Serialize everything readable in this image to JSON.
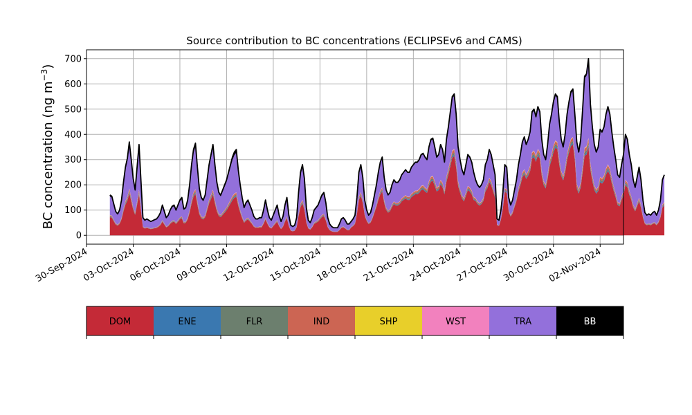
{
  "chart_data": {
    "type": "area",
    "title": "Source contribution to BC concentrations (ECLIPSEv6 and CAMS)",
    "ylabel_main": "BC concentration (ng m",
    "ylabel_exp": "−3",
    "ylabel_close": ")",
    "xlabel": "",
    "ylim": [
      -35,
      735
    ],
    "yticks": [
      0,
      100,
      200,
      300,
      400,
      500,
      600,
      700
    ],
    "xlim": [
      "2024-09-30T00:00",
      "2024-11-03T12:00"
    ],
    "xticks": [
      "2024-09-30",
      "2024-10-03",
      "2024-10-06",
      "2024-10-09",
      "2024-10-12",
      "2024-10-15",
      "2024-10-18",
      "2024-10-21",
      "2024-10-24",
      "2024-10-27",
      "2024-10-30",
      "2024-11-02"
    ],
    "xtick_labels": [
      "30-Sep-2024",
      "03-Oct-2024",
      "06-Oct-2024",
      "09-Oct-2024",
      "12-Oct-2024",
      "15-Oct-2024",
      "18-Oct-2024",
      "21-Oct-2024",
      "24-Oct-2024",
      "27-Oct-2024",
      "30-Oct-2024",
      "02-Nov-2024"
    ],
    "grid": true,
    "time_start": "2024-10-01T12:00",
    "time_step_hours": 3,
    "total": [
      160,
      155,
      125,
      95,
      85,
      100,
      140,
      210,
      270,
      305,
      370,
      300,
      225,
      180,
      270,
      360,
      215,
      70,
      60,
      65,
      60,
      55,
      58,
      62,
      65,
      75,
      90,
      120,
      95,
      70,
      80,
      100,
      115,
      120,
      100,
      120,
      140,
      150,
      105,
      110,
      140,
      200,
      280,
      340,
      365,
      270,
      185,
      150,
      140,
      160,
      220,
      280,
      320,
      360,
      280,
      210,
      170,
      160,
      180,
      200,
      220,
      250,
      280,
      310,
      330,
      340,
      260,
      200,
      150,
      110,
      130,
      140,
      120,
      100,
      75,
      65,
      65,
      70,
      70,
      100,
      140,
      100,
      70,
      60,
      80,
      100,
      120,
      80,
      55,
      75,
      120,
      150,
      80,
      40,
      35,
      40,
      70,
      170,
      250,
      280,
      225,
      110,
      60,
      50,
      70,
      100,
      110,
      120,
      140,
      160,
      170,
      130,
      70,
      45,
      35,
      30,
      30,
      30,
      45,
      65,
      70,
      60,
      45,
      45,
      55,
      65,
      80,
      150,
      250,
      280,
      230,
      140,
      100,
      80,
      90,
      120,
      160,
      200,
      250,
      290,
      310,
      230,
      180,
      160,
      170,
      200,
      220,
      210,
      210,
      220,
      240,
      250,
      260,
      250,
      250,
      270,
      280,
      290,
      290,
      300,
      320,
      325,
      310,
      300,
      350,
      380,
      385,
      350,
      310,
      320,
      360,
      340,
      290,
      380,
      430,
      490,
      550,
      560,
      480,
      350,
      300,
      260,
      240,
      280,
      320,
      310,
      290,
      250,
      220,
      200,
      190,
      200,
      220,
      280,
      300,
      340,
      320,
      280,
      240,
      65,
      60,
      100,
      170,
      280,
      270,
      150,
      120,
      140,
      180,
      220,
      280,
      320,
      370,
      390,
      360,
      380,
      410,
      490,
      500,
      470,
      510,
      490,
      380,
      320,
      300,
      360,
      440,
      480,
      530,
      560,
      550,
      450,
      380,
      350,
      400,
      480,
      530,
      570,
      580,
      480,
      370,
      330,
      380,
      500,
      630,
      640,
      700,
      520,
      430,
      360,
      330,
      350,
      420,
      410,
      430,
      480,
      510,
      480,
      410,
      350,
      300,
      240,
      230,
      280,
      320,
      400,
      380,
      320,
      280,
      220,
      190,
      230,
      270,
      220,
      140,
      90,
      80,
      85,
      80,
      90,
      95,
      80,
      100,
      140,
      220,
      240
    ],
    "colors": {
      "DOM": "#c42a37",
      "ENE": "#3a78b0",
      "FLR": "#6c7f6e",
      "IND": "#cc6553",
      "SHP": "#e8cf2a",
      "WST": "#f281be",
      "TRA": "#9370db",
      "BB": "#000000",
      "axis": "#000000",
      "grid": "#b0b0b0"
    },
    "share_by_period": [
      {
        "from": "2024-10-01T00:00",
        "DOM": 0.45,
        "ENE": 0.01,
        "FLR": 0.015,
        "IND": 0.02,
        "SHP": 0.003,
        "WST": 0.004,
        "TRA": 0.46,
        "BB": 0.038
      },
      {
        "from": "2024-10-17T00:00",
        "DOM": 0.56,
        "ENE": 0.01,
        "FLR": 0.015,
        "IND": 0.02,
        "SHP": 0.003,
        "WST": 0.004,
        "TRA": 0.375,
        "BB": 0.013
      },
      {
        "from": "2024-10-25T00:00",
        "DOM": 0.62,
        "ENE": 0.01,
        "FLR": 0.015,
        "IND": 0.02,
        "SHP": 0.003,
        "WST": 0.004,
        "TRA": 0.315,
        "BB": 0.013
      },
      {
        "from": "2024-10-31T12:00",
        "DOM": 0.5,
        "ENE": 0.01,
        "FLR": 0.015,
        "IND": 0.02,
        "SHP": 0.003,
        "WST": 0.004,
        "TRA": 0.435,
        "BB": 0.013
      }
    ],
    "series_order": [
      "DOM",
      "ENE",
      "FLR",
      "IND",
      "SHP",
      "WST",
      "TRA",
      "BB"
    ],
    "legend": {
      "placement": "bottom",
      "items": [
        {
          "label": "DOM",
          "color": "#c42a37",
          "text_color": "#000000"
        },
        {
          "label": "ENE",
          "color": "#3a78b0",
          "text_color": "#000000"
        },
        {
          "label": "FLR",
          "color": "#6c7f6e",
          "text_color": "#000000"
        },
        {
          "label": "IND",
          "color": "#cc6553",
          "text_color": "#000000"
        },
        {
          "label": "SHP",
          "color": "#e8cf2a",
          "text_color": "#000000"
        },
        {
          "label": "WST",
          "color": "#f281be",
          "text_color": "#000000"
        },
        {
          "label": "TRA",
          "color": "#9370db",
          "text_color": "#000000"
        },
        {
          "label": "BB",
          "color": "#000000",
          "text_color": "#ffffff"
        }
      ]
    }
  }
}
